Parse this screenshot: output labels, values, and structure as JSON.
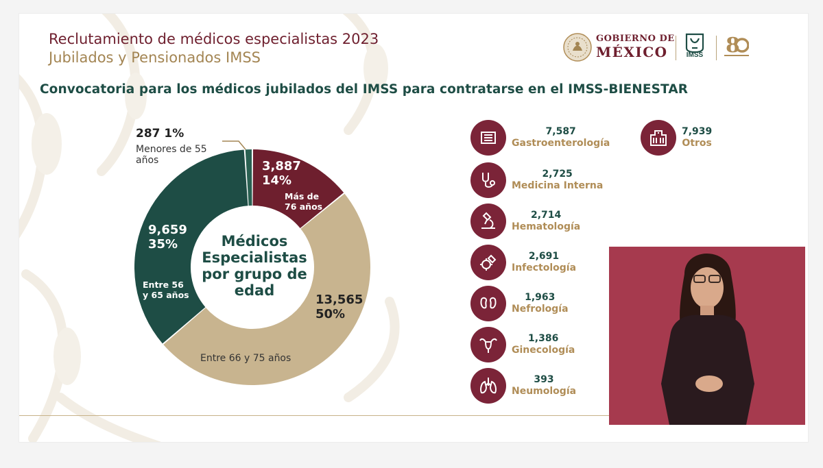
{
  "header": {
    "title_line1": "Reclutamiento de médicos especialistas 2023",
    "title_line2": "Jubilados y Pensionados IMSS",
    "subtitle": "Convocatoria para los médicos jubilados del IMSS para contratarse en el IMSS-BIENESTAR"
  },
  "logos": {
    "gobierno_line1": "GOBIERNO DE",
    "gobierno_line2": "MÉXICO",
    "imss": "IMSS"
  },
  "colors": {
    "maroon": "#6e1f2e",
    "dark_green": "#1e4d45",
    "gold": "#b08d57",
    "tan": "#c8b48f"
  },
  "chart_data": {
    "type": "pie",
    "center_label": "Médicos Especialistas por grupo de edad",
    "slices": [
      {
        "label": "Menores de 55 años",
        "value": 287,
        "percent": "1%",
        "color": "#2a6152"
      },
      {
        "label": "Más de 76 años",
        "value": 3887,
        "percent": "14%",
        "color": "#6e1f2e"
      },
      {
        "label": "Entre 66 y 75 años",
        "value": 13565,
        "percent": "50%",
        "color": "#c8b48f"
      },
      {
        "label": "Entre 56 y 65 años",
        "value": 9659,
        "percent": "35%",
        "color": "#1e4d45"
      }
    ]
  },
  "labels": {
    "menores_value": "287",
    "menores_pct": "1%",
    "menores_line1": "Menores de 55",
    "menores_line2": "años",
    "mas76_value": "3,887",
    "mas76_pct": "14%",
    "mas76_line1": "Más de",
    "mas76_line2": "76 años",
    "e6675_value": "13,565",
    "e6675_pct": "50%",
    "e6675_name": "Entre 66 y 75 años",
    "e5665_value": "9,659",
    "e5665_pct": "35%",
    "e5665_line1": "Entre 56",
    "e5665_line2": "y 65 años",
    "center_line1": "Médicos",
    "center_line2": "Especialistas",
    "center_line3": "por grupo de",
    "center_line4": "edad"
  },
  "specialties": [
    {
      "value": "7,587",
      "name": "Gastroenterología",
      "icon": "intestine-icon"
    },
    {
      "value": "2,725",
      "name": "Medicina Interna",
      "icon": "stethoscope-icon"
    },
    {
      "value": "2,714",
      "name": "Hematología",
      "icon": "microscope-icon"
    },
    {
      "value": "2,691",
      "name": "Infectología",
      "icon": "virus-icon"
    },
    {
      "value": "1,963",
      "name": "Nefrología",
      "icon": "kidneys-icon"
    },
    {
      "value": "1,386",
      "name": "Ginecología",
      "icon": "uterus-icon"
    },
    {
      "value": "393",
      "name": "Neumología",
      "icon": "lungs-icon"
    }
  ],
  "otros": {
    "value": "7,939",
    "name": "Otros",
    "icon": "hospital-icon"
  }
}
